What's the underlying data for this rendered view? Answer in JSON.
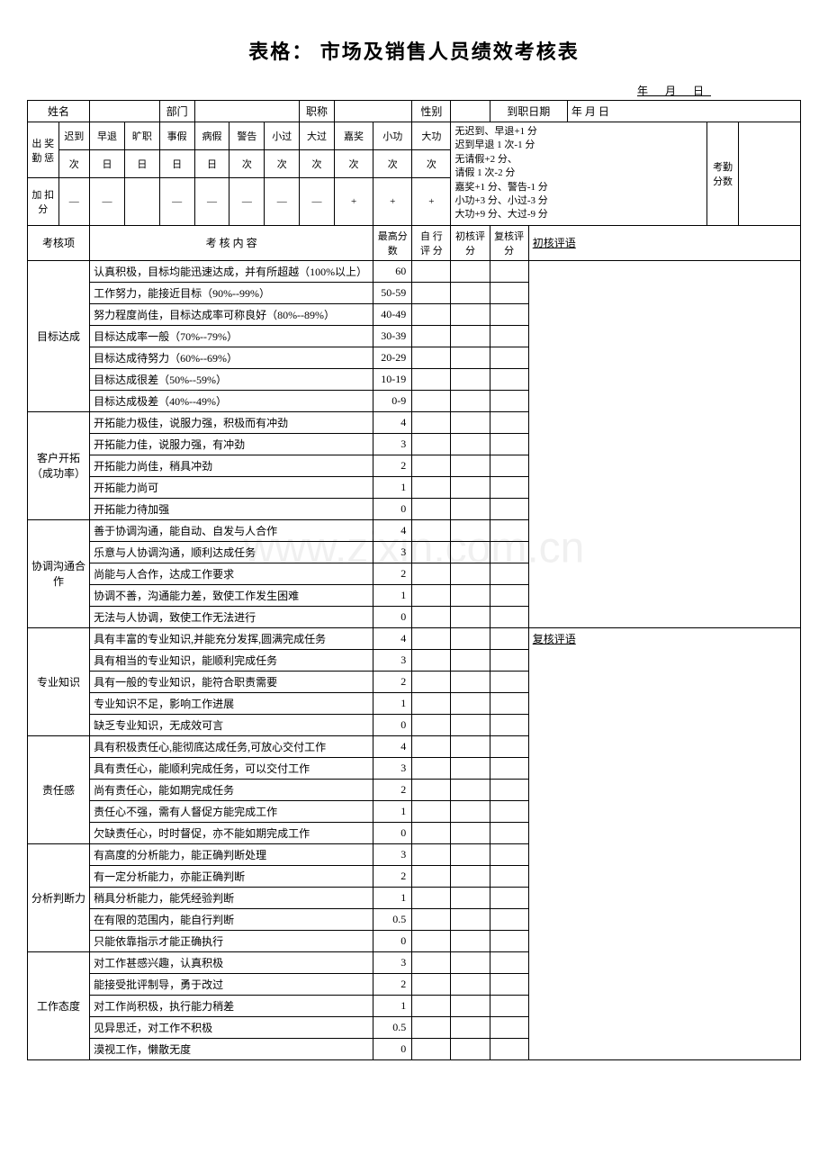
{
  "title": "表格：  市场及销售人员绩效考核表",
  "date_line": "年 月 日",
  "header": {
    "name_label": "姓名",
    "dept_label": "部门",
    "title_label": "职称",
    "gender_label": "性别",
    "hire_date_label": "到职日期",
    "hire_date_value": "年      月      日"
  },
  "attendance": {
    "section_label": "出 奖 勤 惩",
    "cols": [
      "迟到",
      "早退",
      "旷职",
      "事假",
      "病假",
      "警告",
      "小过",
      "大过",
      "嘉奖",
      "小功",
      "大功"
    ],
    "units": [
      "次",
      "日",
      "日",
      "日",
      "日",
      "次",
      "次",
      "次",
      "次",
      "次",
      "次"
    ],
    "bonus_label": "加 扣 分",
    "bonus_row": [
      "—",
      "—",
      "",
      "—",
      "—",
      "—",
      "—",
      "—",
      "+",
      "+",
      "+"
    ],
    "rules": [
      "无迟到、早退+1 分",
      "迟到早退 1 次-1 分",
      "无请假+2 分、",
      "请假 1 次-2 分",
      "嘉奖+1 分、警告-1 分",
      "小功+3 分、小过-3 分",
      "大功+9 分、大过-9 分"
    ],
    "attendance_score_label": "考勤分数"
  },
  "eval_header": {
    "item": "考核项",
    "content": "考    核    内    容",
    "max": "最高分数",
    "self": "自 行 评 分",
    "first": "初核评分",
    "second": "复核评分",
    "first_comment": "初核评语",
    "second_comment": "复核评语"
  },
  "sections": [
    {
      "name": "目标达成",
      "rows": [
        {
          "text": "认真积极，目标均能迅速达成，并有所超越（100%以上）",
          "score": "60"
        },
        {
          "text": "工作努力，能接近目标（90%--99%）",
          "score": "50-59"
        },
        {
          "text": "努力程度尚佳，目标达成率可称良好（80%--89%）",
          "score": "40-49"
        },
        {
          "text": "目标达成率一般（70%--79%）",
          "score": "30-39"
        },
        {
          "text": "目标达成待努力（60%--69%）",
          "score": "20-29"
        },
        {
          "text": "目标达成很差（50%--59%）",
          "score": "10-19"
        },
        {
          "text": "目标达成极差（40%--49%）",
          "score": "0-9"
        }
      ]
    },
    {
      "name": "客户开拓（成功率）",
      "rows": [
        {
          "text": "开拓能力极佳，说服力强，积极而有冲劲",
          "score": "4"
        },
        {
          "text": "开拓能力佳，说服力强，有冲劲",
          "score": "3"
        },
        {
          "text": "开拓能力尚佳，稍具冲劲",
          "score": "2"
        },
        {
          "text": "开拓能力尚可",
          "score": "1"
        },
        {
          "text": "开拓能力待加强",
          "score": "0"
        }
      ]
    },
    {
      "name": "协调沟通合作",
      "rows": [
        {
          "text": "善于协调沟通，能自动、自发与人合作",
          "score": "4"
        },
        {
          "text": "乐意与人协调沟通，顺利达成任务",
          "score": "3"
        },
        {
          "text": "尚能与人合作，达成工作要求",
          "score": "2"
        },
        {
          "text": "协调不善，沟通能力差，致使工作发生困难",
          "score": "1"
        },
        {
          "text": "无法与人协调，致使工作无法进行",
          "score": "0"
        }
      ]
    },
    {
      "name": "专业知识",
      "rows": [
        {
          "text": "具有丰富的专业知识,并能充分发挥,圆满完成任务",
          "score": "4"
        },
        {
          "text": "具有相当的专业知识，能顺利完成任务",
          "score": "3"
        },
        {
          "text": "具有一般的专业知识，能符合职责需要",
          "score": "2"
        },
        {
          "text": "专业知识不足，影响工作进展",
          "score": "1"
        },
        {
          "text": "缺乏专业知识，无成效可言",
          "score": "0"
        }
      ]
    },
    {
      "name": "责任感",
      "rows": [
        {
          "text": "具有积极责任心,能彻底达成任务,可放心交付工作",
          "score": "4"
        },
        {
          "text": "具有责任心，能顺利完成任务，可以交付工作",
          "score": "3"
        },
        {
          "text": "尚有责任心，能如期完成任务",
          "score": "2"
        },
        {
          "text": "责任心不强，需有人督促方能完成工作",
          "score": "1"
        },
        {
          "text": "欠缺责任心，时时督促，亦不能如期完成工作",
          "score": "0"
        }
      ]
    },
    {
      "name": "分析判断力",
      "rows": [
        {
          "text": "有高度的分析能力，能正确判断处理",
          "score": "3"
        },
        {
          "text": "有一定分析能力，亦能正确判断",
          "score": "2"
        },
        {
          "text": "稍具分析能力，能凭经验判断",
          "score": "1"
        },
        {
          "text": "在有限的范围内，能自行判断",
          "score": "0.5"
        },
        {
          "text": "只能依靠指示才能正确执行",
          "score": "0"
        }
      ]
    },
    {
      "name": "工作态度",
      "rows": [
        {
          "text": "对工作甚感兴趣，认真积极",
          "score": "3"
        },
        {
          "text": "能接受批评制导，勇于改过",
          "score": "2"
        },
        {
          "text": "对工作尚积极，执行能力稍差",
          "score": "1"
        },
        {
          "text": "见异思迁，对工作不积极",
          "score": "0.5"
        },
        {
          "text": "漠视工作，懒散无度",
          "score": "0"
        }
      ]
    }
  ],
  "watermark": "www.zixin.com.cn"
}
